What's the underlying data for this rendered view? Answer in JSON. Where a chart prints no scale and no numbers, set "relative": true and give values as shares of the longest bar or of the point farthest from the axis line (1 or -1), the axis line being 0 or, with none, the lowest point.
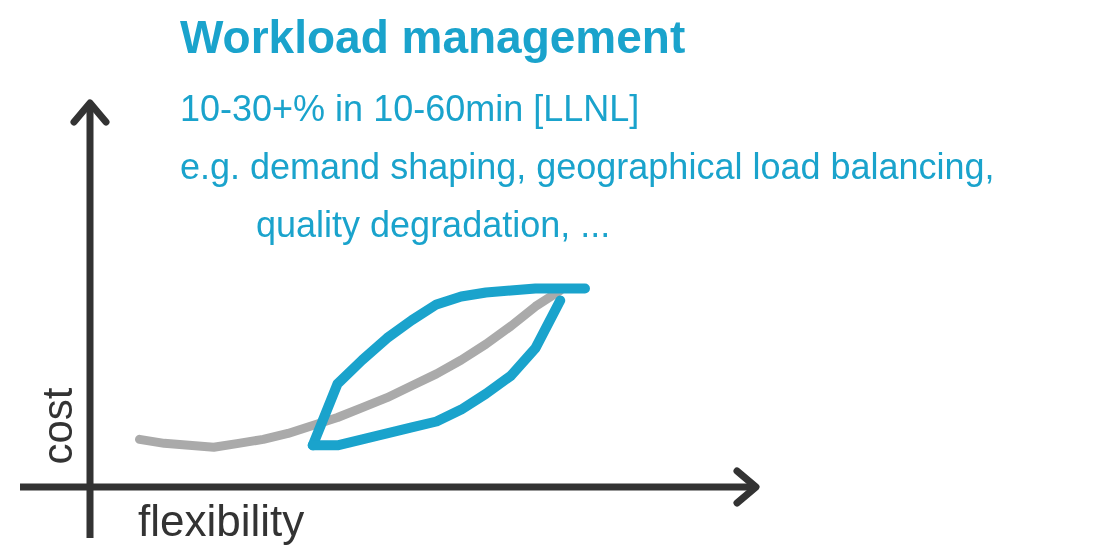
{
  "chart_data": {
    "type": "line",
    "title": "Workload management",
    "annotations": [
      "10-30+% in 10-60min [LLNL]",
      "e.g. demand shaping, geographical load balancing,",
      "quality degradation, ..."
    ],
    "xlabel": "flexibility",
    "ylabel": "cost",
    "relative": true,
    "legend": false,
    "grid": false,
    "marker": "none",
    "line_style": "solid",
    "categories": [
      null,
      null,
      null,
      null,
      null,
      null,
      null,
      null,
      null,
      null,
      null,
      null,
      null,
      null,
      null,
      null,
      null,
      null,
      null
    ],
    "series": [
      {
        "color": "#aaaaaa",
        "values": [
          0.24,
          0.22,
          0.21,
          0.2,
          0.22,
          0.24,
          0.27,
          0.31,
          0.35,
          0.4,
          0.45,
          0.51,
          0.57,
          0.64,
          0.72,
          0.81,
          0.91,
          0.99,
          null
        ]
      },
      {
        "color": "#1aa3cc",
        "values": [
          null,
          null,
          null,
          null,
          null,
          null,
          null,
          0.21,
          0.52,
          0.64,
          0.75,
          0.84,
          0.92,
          0.96,
          0.98,
          0.99,
          1.0,
          1.0,
          1.0
        ]
      },
      {
        "color": "#1aa3cc",
        "values": [
          null,
          null,
          null,
          null,
          null,
          null,
          null,
          0.21,
          0.21,
          0.24,
          0.27,
          0.3,
          0.33,
          0.39,
          0.47,
          0.56,
          0.7,
          0.94,
          null
        ]
      }
    ]
  }
}
